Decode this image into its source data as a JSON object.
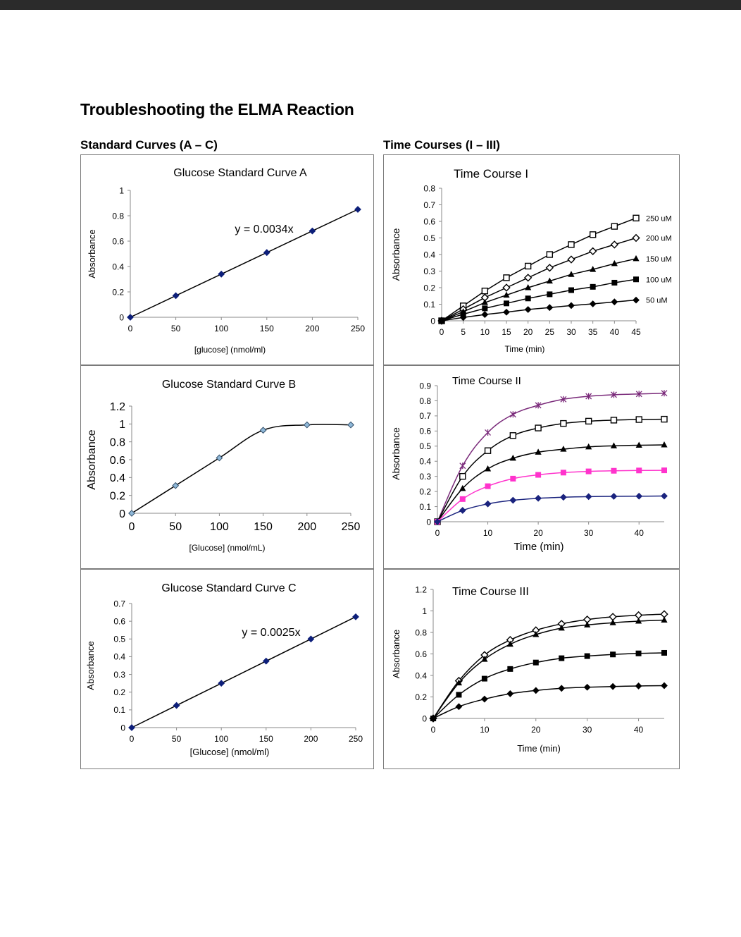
{
  "page": {
    "title": "Troubleshooting the ELMA Reaction",
    "left_section": "Standard Curves (A – C)",
    "right_section": "Time Courses (I – III)"
  },
  "chart_data": [
    {
      "id": "A",
      "type": "scatter",
      "title": "Glucose Standard Curve A",
      "xlabel": "[glucose] (nmol/ml)",
      "ylabel": "Absorbance",
      "xlim": [
        0,
        250
      ],
      "ylim": [
        0,
        1
      ],
      "xticks": [
        0,
        50,
        100,
        150,
        200,
        250
      ],
      "yticks": [
        0,
        0.2,
        0.4,
        0.6,
        0.8,
        1
      ],
      "annotation": "y = 0.0034x",
      "curve": "straight",
      "series": [
        {
          "x": [
            0,
            50,
            100,
            150,
            200,
            250
          ],
          "y": [
            0,
            0.17,
            0.34,
            0.51,
            0.68,
            0.85
          ],
          "marker": "diamond",
          "color": "#0d1f7a",
          "line": "#000000"
        }
      ]
    },
    {
      "id": "B",
      "type": "scatter",
      "title": "Glucose Standard Curve B",
      "xlabel": "[Glucose] (nmol/mL)",
      "ylabel": "Absorbance",
      "xlim": [
        0,
        250
      ],
      "ylim": [
        0,
        1.2
      ],
      "xticks": [
        0,
        50,
        100,
        150,
        200,
        250
      ],
      "yticks": [
        0,
        0.2,
        0.4,
        0.6,
        0.8,
        1,
        1.2
      ],
      "annotation": "",
      "curve": "smooth",
      "series": [
        {
          "x": [
            0,
            50,
            100,
            150,
            200,
            250
          ],
          "y": [
            0,
            0.31,
            0.62,
            0.93,
            0.99,
            0.99
          ],
          "marker": "diamond",
          "color": "#8fb8d8",
          "line": "#000000"
        }
      ]
    },
    {
      "id": "C",
      "type": "scatter",
      "title": "Glucose Standard Curve C",
      "xlabel": "[Glucose] (nmol/ml)",
      "ylabel": "Absorbance",
      "xlim": [
        0,
        250
      ],
      "ylim": [
        0,
        0.7
      ],
      "xticks": [
        0,
        50,
        100,
        150,
        200,
        250
      ],
      "yticks": [
        0,
        0.1,
        0.2,
        0.3,
        0.4,
        0.5,
        0.6,
        0.7
      ],
      "annotation": "y = 0.0025x",
      "curve": "straight",
      "series": [
        {
          "x": [
            0,
            50,
            100,
            150,
            200,
            250
          ],
          "y": [
            0,
            0.125,
            0.25,
            0.375,
            0.5,
            0.625
          ],
          "marker": "diamond",
          "color": "#0d1f7a",
          "line": "#000000"
        }
      ]
    },
    {
      "id": "I",
      "type": "line",
      "title": "Time Course I",
      "xlabel": "Time (min)",
      "ylabel": "Absorbance",
      "xlim": [
        0,
        45
      ],
      "ylim": [
        0,
        0.8
      ],
      "xticks": [
        0,
        5,
        10,
        15,
        20,
        25,
        30,
        35,
        40,
        45
      ],
      "yticks": [
        0,
        0.1,
        0.2,
        0.3,
        0.4,
        0.5,
        0.6,
        0.7,
        0.8
      ],
      "curve": "straight",
      "series": [
        {
          "name": "250 uM",
          "x": [
            0,
            5,
            10,
            15,
            20,
            25,
            30,
            35,
            40,
            45
          ],
          "y": [
            0,
            0.09,
            0.18,
            0.26,
            0.33,
            0.4,
            0.46,
            0.52,
            0.57,
            0.62
          ],
          "marker": "square-open",
          "color": "#000000",
          "line": "#000000"
        },
        {
          "name": "200 uM",
          "x": [
            0,
            5,
            10,
            15,
            20,
            25,
            30,
            35,
            40,
            45
          ],
          "y": [
            0,
            0.07,
            0.14,
            0.2,
            0.26,
            0.32,
            0.37,
            0.42,
            0.46,
            0.5
          ],
          "marker": "diamond-open",
          "color": "#000000",
          "line": "#000000"
        },
        {
          "name": "150 uM",
          "x": [
            0,
            5,
            10,
            15,
            20,
            25,
            30,
            35,
            40,
            45
          ],
          "y": [
            0,
            0.055,
            0.11,
            0.155,
            0.2,
            0.24,
            0.28,
            0.31,
            0.345,
            0.375
          ],
          "marker": "triangle",
          "color": "#000000",
          "line": "#000000"
        },
        {
          "name": "100 uM",
          "x": [
            0,
            5,
            10,
            15,
            20,
            25,
            30,
            35,
            40,
            45
          ],
          "y": [
            0,
            0.04,
            0.075,
            0.105,
            0.135,
            0.16,
            0.185,
            0.205,
            0.23,
            0.25
          ],
          "marker": "square",
          "color": "#000000",
          "line": "#000000"
        },
        {
          "name": "50 uM",
          "x": [
            0,
            5,
            10,
            15,
            20,
            25,
            30,
            35,
            40,
            45
          ],
          "y": [
            0,
            0.02,
            0.038,
            0.052,
            0.068,
            0.08,
            0.092,
            0.102,
            0.114,
            0.125
          ],
          "marker": "diamond",
          "color": "#000000",
          "line": "#000000"
        }
      ]
    },
    {
      "id": "II",
      "type": "line",
      "title": "Time Course II",
      "xlabel": "Time (min)",
      "ylabel": "Absorbance",
      "xlim": [
        0,
        45
      ],
      "ylim": [
        0,
        0.9
      ],
      "xticks": [
        0,
        10,
        20,
        30,
        40
      ],
      "yticks": [
        0,
        0.1,
        0.2,
        0.3,
        0.4,
        0.5,
        0.6,
        0.7,
        0.8,
        0.9
      ],
      "curve": "smooth",
      "series": [
        {
          "x": [
            0,
            5,
            10,
            15,
            20,
            25,
            30,
            35,
            40,
            45
          ],
          "y": [
            0,
            0.37,
            0.59,
            0.71,
            0.77,
            0.81,
            0.83,
            0.84,
            0.845,
            0.85
          ],
          "marker": "star",
          "color": "#7a2a7a",
          "line": "#7a2a7a"
        },
        {
          "x": [
            0,
            5,
            10,
            15,
            20,
            25,
            30,
            35,
            40,
            45
          ],
          "y": [
            0,
            0.3,
            0.47,
            0.57,
            0.62,
            0.65,
            0.665,
            0.672,
            0.676,
            0.678
          ],
          "marker": "square-open",
          "color": "#000000",
          "line": "#000000"
        },
        {
          "x": [
            0,
            5,
            10,
            15,
            20,
            25,
            30,
            35,
            40,
            45
          ],
          "y": [
            0,
            0.22,
            0.35,
            0.42,
            0.46,
            0.48,
            0.495,
            0.502,
            0.506,
            0.508
          ],
          "marker": "triangle",
          "color": "#000000",
          "line": "#000000"
        },
        {
          "x": [
            0,
            5,
            10,
            15,
            20,
            25,
            30,
            35,
            40,
            45
          ],
          "y": [
            0,
            0.15,
            0.235,
            0.285,
            0.31,
            0.325,
            0.333,
            0.337,
            0.339,
            0.34
          ],
          "marker": "square",
          "color": "#ff33cc",
          "line": "#ff33cc"
        },
        {
          "x": [
            0,
            5,
            10,
            15,
            20,
            25,
            30,
            35,
            40,
            45
          ],
          "y": [
            0,
            0.075,
            0.118,
            0.142,
            0.155,
            0.162,
            0.166,
            0.168,
            0.169,
            0.17
          ],
          "marker": "diamond",
          "color": "#1a237e",
          "line": "#1a237e"
        }
      ]
    },
    {
      "id": "III",
      "type": "line",
      "title": "Time Course III",
      "xlabel": "Time (min)",
      "ylabel": "Absorbance",
      "xlim": [
        0,
        45
      ],
      "ylim": [
        0,
        1.2
      ],
      "xticks": [
        0,
        10,
        20,
        30,
        40
      ],
      "yticks": [
        0,
        0.2,
        0.4,
        0.6,
        0.8,
        1,
        1.2
      ],
      "curve": "smooth",
      "series": [
        {
          "x": [
            0,
            5,
            10,
            15,
            20,
            25,
            30,
            35,
            40,
            45
          ],
          "y": [
            0,
            0.35,
            0.59,
            0.73,
            0.82,
            0.88,
            0.92,
            0.945,
            0.96,
            0.97
          ],
          "marker": "diamond-open",
          "color": "#000000",
          "line": "#000000"
        },
        {
          "x": [
            0,
            5,
            10,
            15,
            20,
            25,
            30,
            35,
            40,
            45
          ],
          "y": [
            0,
            0.33,
            0.55,
            0.69,
            0.78,
            0.84,
            0.87,
            0.89,
            0.905,
            0.915
          ],
          "marker": "triangle",
          "color": "#000000",
          "line": "#000000"
        },
        {
          "x": [
            0,
            5,
            10,
            15,
            20,
            25,
            30,
            35,
            40,
            45
          ],
          "y": [
            0,
            0.22,
            0.37,
            0.46,
            0.52,
            0.56,
            0.58,
            0.595,
            0.605,
            0.61
          ],
          "marker": "square",
          "color": "#000000",
          "line": "#000000"
        },
        {
          "x": [
            0,
            5,
            10,
            15,
            20,
            25,
            30,
            35,
            40,
            45
          ],
          "y": [
            0,
            0.11,
            0.18,
            0.23,
            0.26,
            0.28,
            0.29,
            0.297,
            0.302,
            0.305
          ],
          "marker": "diamond",
          "color": "#000000",
          "line": "#000000"
        }
      ]
    }
  ]
}
